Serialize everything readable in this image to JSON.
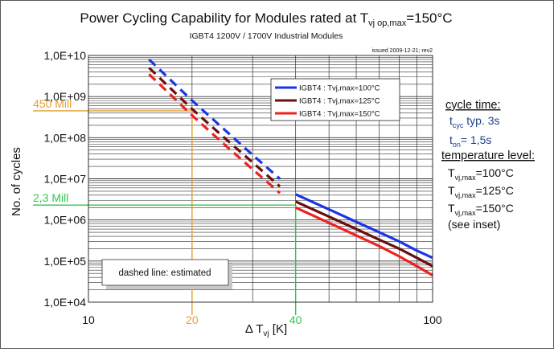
{
  "chart_data": {
    "type": "line",
    "title": "Power Cycling Capability for Modules rated at T",
    "title_subscript": "vj op,max",
    "title_suffix": "=150°C",
    "subtitle": "IGBT4 1200V / 1700V Industrial Modules",
    "issued_note": "issued 2009-12-21; rev2",
    "xlabel": "Δ T",
    "xlabel_subscript": "vj",
    "xlabel_unit": " [K]",
    "ylabel": "No. of cycles",
    "x_scale": "log",
    "y_scale": "log",
    "xlim": [
      10,
      100
    ],
    "ylim": [
      10000,
      10000000000
    ],
    "x_ticks": [
      "10",
      "100"
    ],
    "y_ticks": [
      "1,0E+04",
      "1,0E+05",
      "1,0E+06",
      "1,0E+07",
      "1,0E+08",
      "1,0E+09",
      "1,0E+10"
    ],
    "grid": true,
    "legend_position": "top-right",
    "series": [
      {
        "name": "IGBT4 : Tvj,max=100°C",
        "color": "#1a35e6",
        "estimated_x": [
          15,
          20,
          25,
          30,
          36
        ],
        "estimated_y": [
          8000000000,
          800000000,
          150000000,
          38000000,
          10000000
        ],
        "x": [
          40,
          50,
          60,
          70,
          80,
          90,
          100
        ],
        "y": [
          4200000,
          1800000,
          900000,
          500000,
          300000,
          180000,
          120000
        ]
      },
      {
        "name": "IGBT4 : Tvj,max=125°C",
        "color": "#6b0d0d",
        "estimated_x": [
          15,
          20,
          25,
          30,
          36
        ],
        "estimated_y": [
          5000000000,
          500000000,
          95000000,
          25000000,
          6500000
        ],
        "x": [
          40,
          50,
          60,
          70,
          80,
          90,
          100
        ],
        "y": [
          2800000,
          1200000,
          600000,
          330000,
          200000,
          120000,
          75000
        ]
      },
      {
        "name": "IGBT4 : Tvj,max=150°C",
        "color": "#ee2020",
        "estimated_x": [
          15,
          20,
          25,
          30,
          36
        ],
        "estimated_y": [
          3500000000,
          350000000,
          65000000,
          17000000,
          4500000
        ],
        "x": [
          40,
          50,
          60,
          70,
          80,
          90,
          100
        ],
        "y": [
          2000000,
          850000,
          420000,
          230000,
          130000,
          75000,
          45000
        ]
      }
    ],
    "markers": [
      {
        "label": "450 Mill",
        "x": 20,
        "y": 450000000,
        "x_label": "20",
        "color": "#e4a030"
      },
      {
        "label": "2,3 Mill",
        "x": 40,
        "y": 2300000,
        "x_label": "40",
        "color": "#2ec84a"
      }
    ],
    "annotations": {
      "dashed_note": "dashed line: estimated",
      "cycle_time_heading": "cycle time:",
      "tcyc_main": "t",
      "tcyc_sub": "cyc",
      "tcyc_rest": " typ. 3s",
      "ton_main": "t",
      "ton_sub": "on",
      "ton_rest": "= 1,5s",
      "temp_heading": "temperature level:",
      "temp_lines": [
        {
          "main": "T",
          "sub": "vj,max",
          "rest": "=100°C"
        },
        {
          "main": "T",
          "sub": "vj,max",
          "rest": "=125°C"
        },
        {
          "main": "T",
          "sub": "vj,max",
          "rest": "=150°C"
        }
      ],
      "see_inset": "(see inset)"
    }
  }
}
